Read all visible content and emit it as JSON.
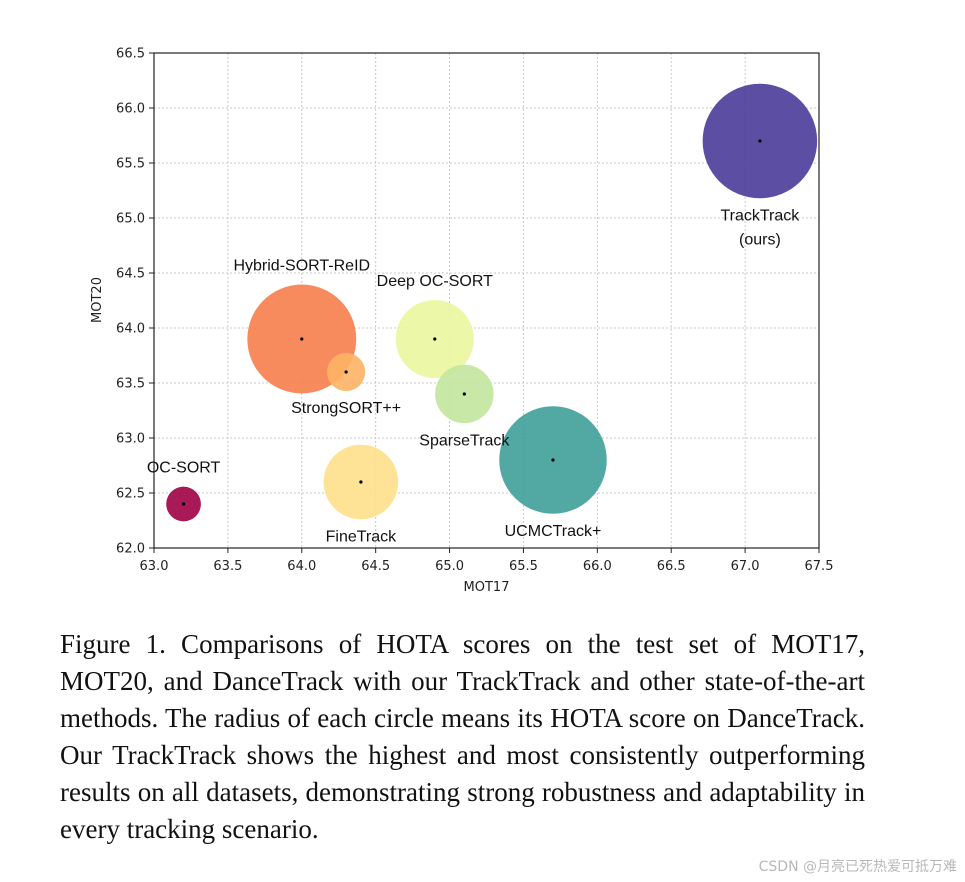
{
  "chart_data": {
    "type": "scatter",
    "title": "",
    "xlabel": "MOT17",
    "ylabel": "MOT20",
    "xlim": [
      63.0,
      67.5
    ],
    "ylim": [
      62.0,
      66.5
    ],
    "x_ticks": [
      "63.0",
      "63.5",
      "64.0",
      "64.5",
      "65.0",
      "65.5",
      "66.0",
      "66.5",
      "67.0",
      "67.5"
    ],
    "y_ticks": [
      "62.0",
      "62.5",
      "63.0",
      "63.5",
      "64.0",
      "64.5",
      "65.0",
      "65.5",
      "66.0",
      "66.5"
    ],
    "grid": true,
    "size_encoding": "HOTA score on DanceTrack",
    "points": [
      {
        "label": "OC-SORT",
        "x": 63.2,
        "y": 62.4,
        "size": 55.1,
        "color": "#9e0142",
        "label_pos": "above"
      },
      {
        "label": "Hybrid-SORT-ReID",
        "x": 64.0,
        "y": 63.9,
        "size": 65.7,
        "color": "#f67e4b",
        "label_pos": "above"
      },
      {
        "label": "StrongSORT++",
        "x": 64.3,
        "y": 63.6,
        "size": 55.6,
        "color": "#fdb365",
        "label_pos": "below"
      },
      {
        "label": "FineTrack",
        "x": 64.4,
        "y": 62.6,
        "size": 60.8,
        "color": "#fee08b",
        "label_pos": "below"
      },
      {
        "label": "Deep OC-SORT",
        "x": 64.9,
        "y": 63.9,
        "size": 61.3,
        "color": "#eaf69d",
        "label_pos": "above"
      },
      {
        "label": "SparseTrack",
        "x": 65.1,
        "y": 63.4,
        "size": 58.5,
        "color": "#c2e69e",
        "label_pos": "below"
      },
      {
        "label": "UCMCTrack+",
        "x": 65.7,
        "y": 62.8,
        "size": 65.5,
        "color": "#3f9f99",
        "label_pos": "below"
      },
      {
        "label": "TrackTrack\n(ours)",
        "x": 67.1,
        "y": 65.7,
        "size": 66.5,
        "color": "#4a3b98",
        "label_pos": "below"
      }
    ]
  },
  "caption": "Figure 1. Comparisons of HOTA scores on the test set of MOT17, MOT20, and DanceTrack with our TrackTrack and other state-of-the-art methods.  The radius of each circle means its HOTA score on DanceTrack. Our TrackTrack shows the highest and most consistently outperforming results on all datasets, demonstrating strong robustness and adaptability in every tracking scenario.",
  "watermark": "CSDN @月亮已死热爱可抵万难"
}
